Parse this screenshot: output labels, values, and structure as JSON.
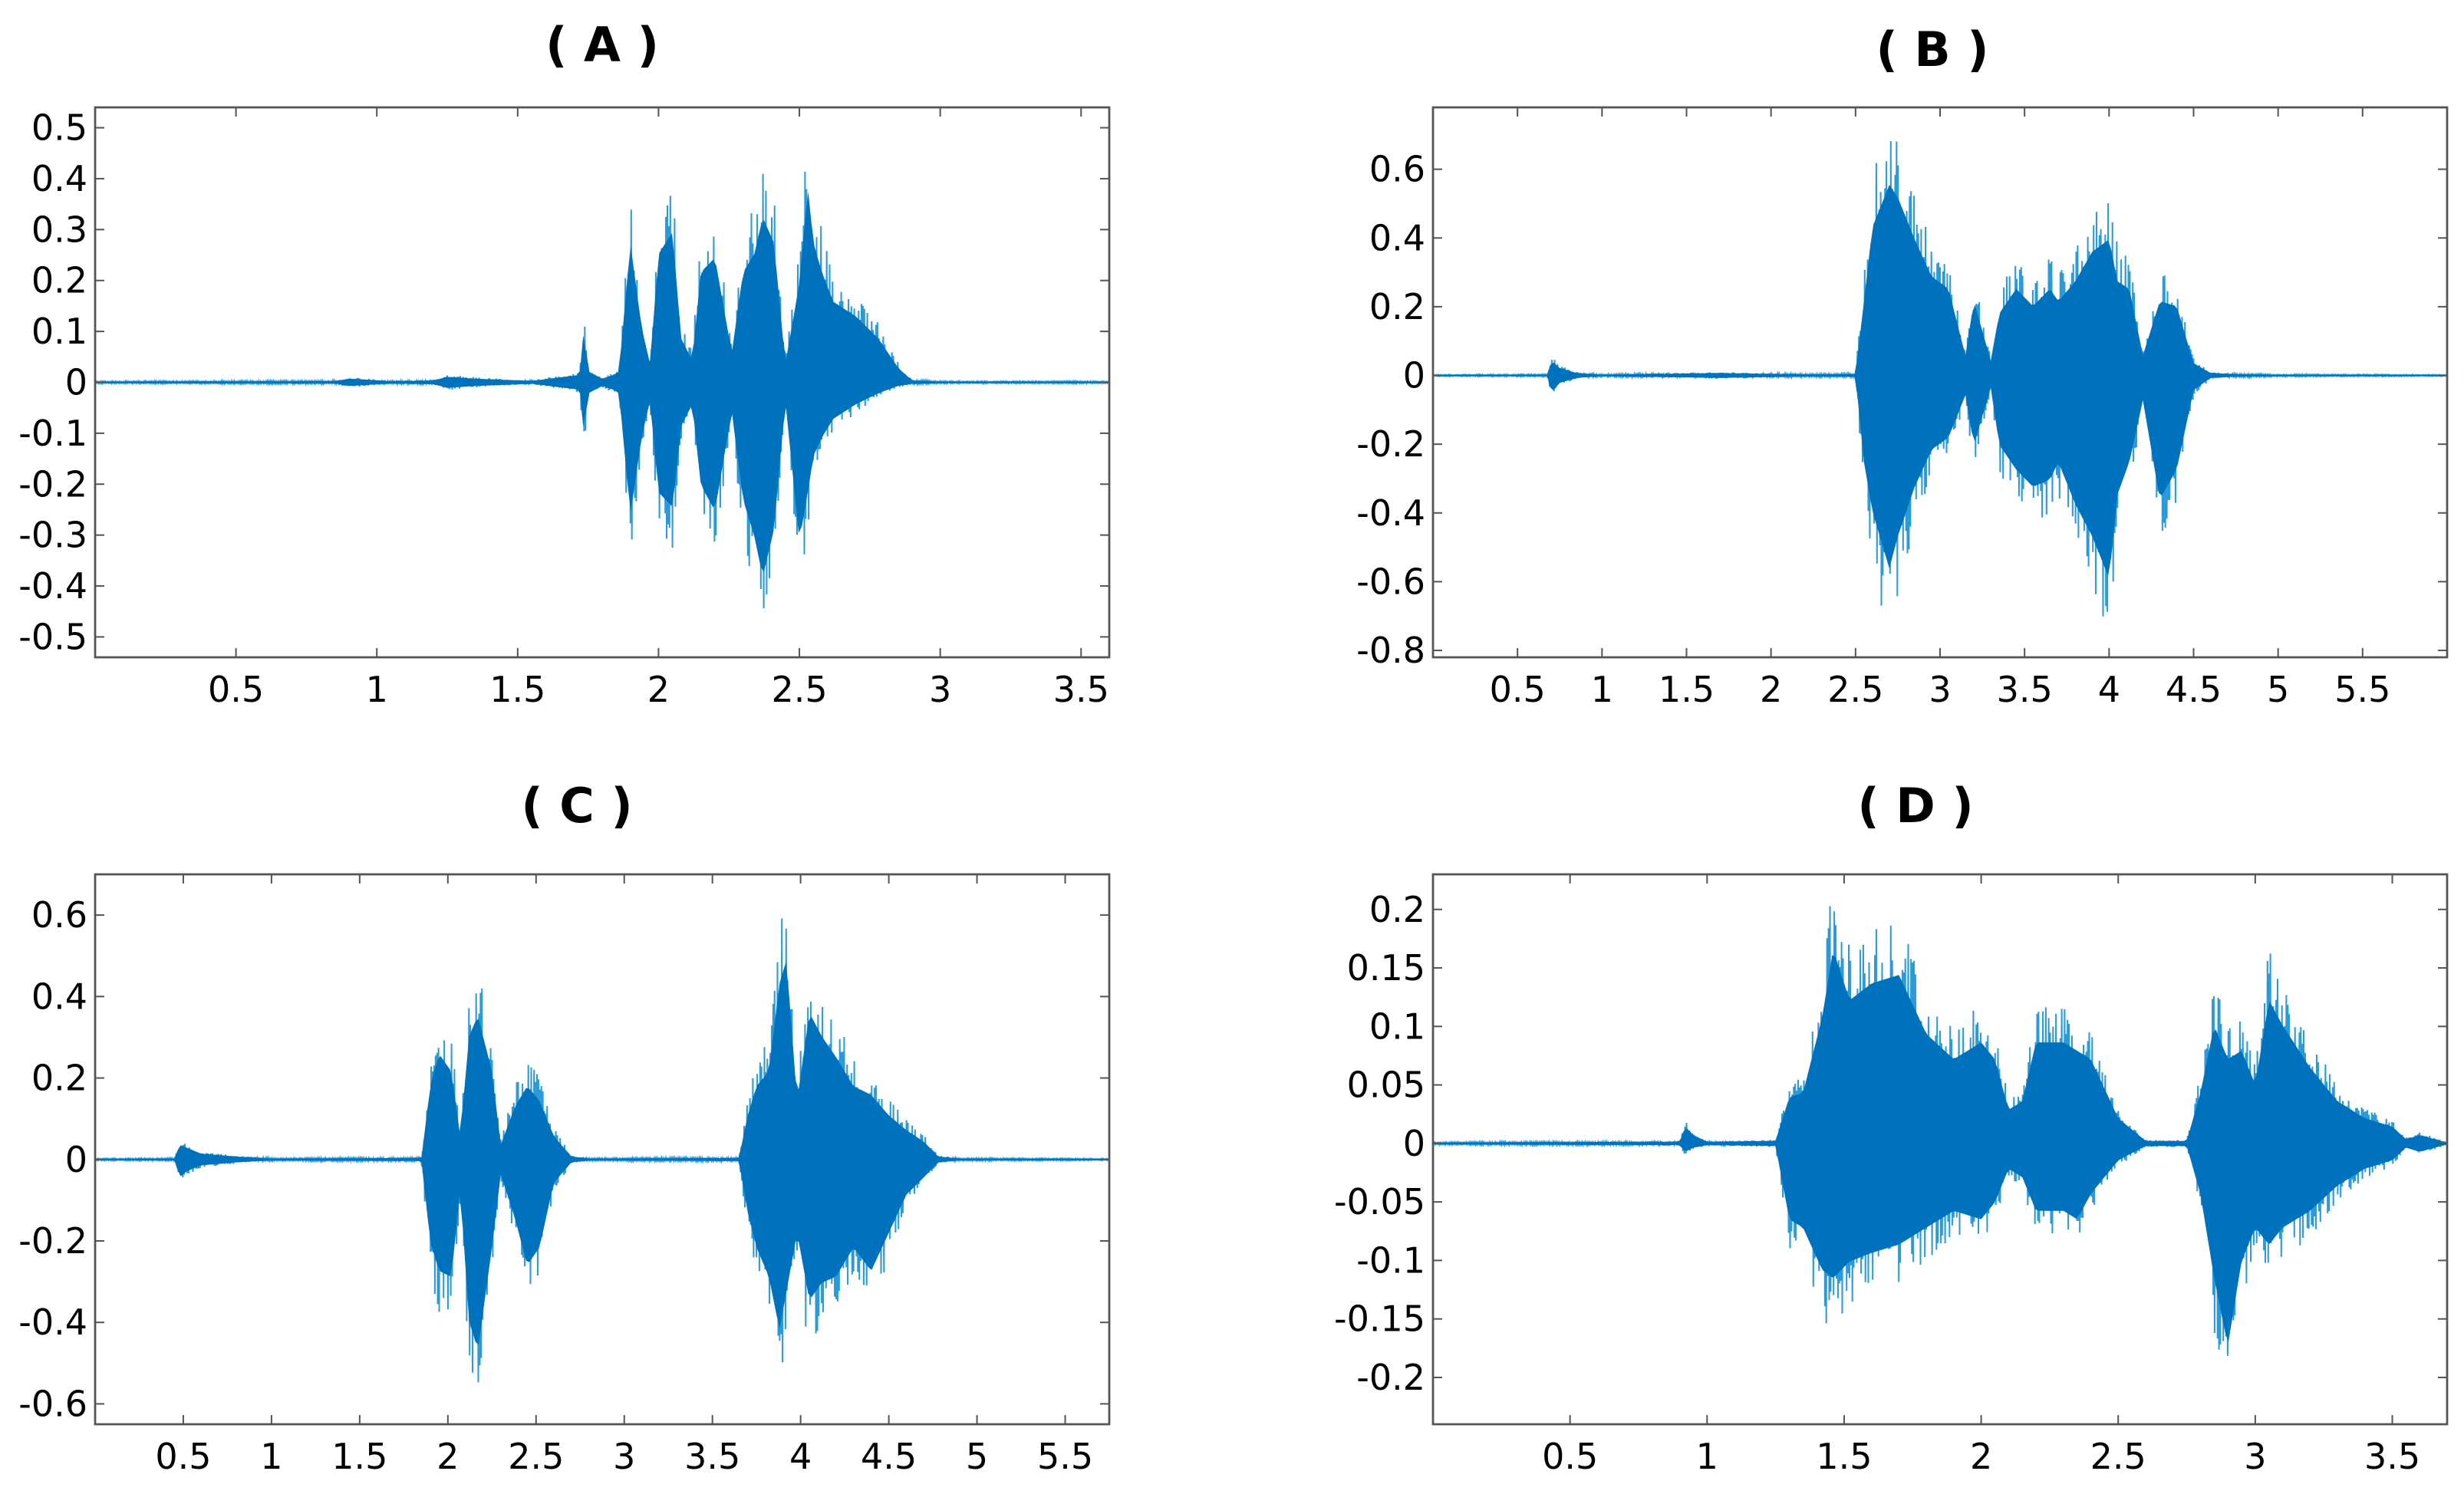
{
  "colors": {
    "waveform": "#0072bd",
    "waveform_light": "#2a9ad8",
    "axes": "#555555",
    "text": "#000000",
    "background": "#ffffff"
  },
  "chart_data": [
    {
      "id": "A",
      "type": "line",
      "title": "( A )",
      "xlim": [
        0,
        3.6
      ],
      "ylim": [
        -0.54,
        0.54
      ],
      "xticks": [
        0.5,
        1,
        1.5,
        2,
        2.5,
        3,
        3.5
      ],
      "xtick_labels": [
        "0.5",
        "1",
        "1.5",
        "2",
        "2.5",
        "3",
        "3.5"
      ],
      "yticks": [
        0.5,
        0.4,
        0.3,
        0.2,
        0.1,
        0,
        -0.1,
        -0.2,
        -0.3,
        -0.4,
        -0.5
      ],
      "ytick_labels": [
        "0.5",
        "0.4",
        "0.3",
        "0.2",
        "0.1",
        "0",
        "-0.1",
        "-0.2",
        "-0.3",
        "-0.4",
        "-0.5"
      ],
      "grid": false,
      "series": [
        {
          "envelope": {
            "x": [
              0,
              0.85,
              0.9,
              0.95,
              1.05,
              1.2,
              1.25,
              1.35,
              1.55,
              1.72,
              1.735,
              1.75,
              1.8,
              1.84,
              1.86,
              1.9,
              1.94,
              1.97,
              2.0,
              2.05,
              2.08,
              2.12,
              2.15,
              2.2,
              2.26,
              2.3,
              2.34,
              2.37,
              2.41,
              2.45,
              2.5,
              2.53,
              2.55,
              2.58,
              2.62,
              2.7,
              2.78,
              2.85,
              2.9,
              3.0,
              3.6
            ],
            "upper": [
              0.002,
              0.003,
              0.01,
              0.008,
              0.003,
              0.005,
              0.015,
              0.01,
              0.004,
              0.02,
              0.15,
              0.03,
              0.01,
              0.02,
              0.03,
              0.38,
              0.15,
              0.05,
              0.35,
              0.41,
              0.12,
              0.06,
              0.3,
              0.34,
              0.08,
              0.3,
              0.35,
              0.45,
              0.38,
              0.05,
              0.27,
              0.53,
              0.38,
              0.3,
              0.22,
              0.18,
              0.12,
              0.04,
              0.005,
              0.002,
              0.002
            ],
            "lower": [
              -0.002,
              -0.003,
              -0.01,
              -0.008,
              -0.003,
              -0.005,
              -0.015,
              -0.01,
              -0.004,
              -0.02,
              -0.14,
              -0.03,
              -0.01,
              -0.02,
              -0.03,
              -0.36,
              -0.15,
              -0.05,
              -0.3,
              -0.34,
              -0.12,
              -0.06,
              -0.28,
              -0.35,
              -0.08,
              -0.32,
              -0.42,
              -0.53,
              -0.4,
              -0.05,
              -0.43,
              -0.3,
              -0.2,
              -0.15,
              -0.1,
              -0.06,
              -0.03,
              -0.01,
              -0.004,
              -0.002,
              -0.002
            ]
          }
        }
      ]
    },
    {
      "id": "B",
      "type": "line",
      "title": "( B )",
      "xlim": [
        0,
        6
      ],
      "ylim": [
        -0.82,
        0.78
      ],
      "xticks": [
        0.5,
        1,
        1.5,
        2,
        2.5,
        3,
        3.5,
        4,
        4.5,
        5,
        5.5
      ],
      "xtick_labels": [
        "0.5",
        "1",
        "1.5",
        "2",
        "2.5",
        "3",
        "3.5",
        "4",
        "4.5",
        "5",
        "5.5"
      ],
      "yticks": [
        0.6,
        0.4,
        0.2,
        0,
        -0.2,
        -0.4,
        -0.6,
        -0.8
      ],
      "ytick_labels": [
        "0.6",
        "0.4",
        "0.2",
        "0",
        "-0.2",
        "-0.4",
        "-0.6",
        "-0.8"
      ],
      "grid": false,
      "series": [
        {
          "envelope": {
            "x": [
              0,
              0.68,
              0.7,
              0.75,
              0.85,
              1.0,
              1.5,
              1.7,
              2.2,
              2.5,
              2.55,
              2.6,
              2.7,
              2.75,
              2.85,
              2.95,
              3.05,
              3.15,
              3.2,
              3.3,
              3.35,
              3.45,
              3.55,
              3.65,
              3.7,
              3.8,
              3.9,
              4.0,
              4.05,
              4.12,
              4.2,
              4.3,
              4.4,
              4.5,
              4.6,
              4.75,
              5.0,
              6.0
            ],
            "upper": [
              0.002,
              0.003,
              0.06,
              0.03,
              0.01,
              0.003,
              0.008,
              0.01,
              0.004,
              0.005,
              0.3,
              0.6,
              0.77,
              0.72,
              0.55,
              0.4,
              0.35,
              0.08,
              0.3,
              0.06,
              0.25,
              0.35,
              0.28,
              0.35,
              0.3,
              0.38,
              0.5,
              0.55,
              0.38,
              0.35,
              0.08,
              0.3,
              0.28,
              0.05,
              0.01,
              0.005,
              0.003,
              0.002
            ],
            "lower": [
              -0.002,
              -0.003,
              -0.07,
              -0.03,
              -0.01,
              -0.003,
              -0.008,
              -0.01,
              -0.004,
              -0.005,
              -0.35,
              -0.55,
              -0.78,
              -0.65,
              -0.45,
              -0.3,
              -0.25,
              -0.08,
              -0.28,
              -0.05,
              -0.28,
              -0.38,
              -0.45,
              -0.42,
              -0.35,
              -0.52,
              -0.65,
              -0.82,
              -0.48,
              -0.35,
              -0.1,
              -0.5,
              -0.38,
              -0.06,
              -0.01,
              -0.005,
              -0.003,
              -0.002
            ]
          }
        }
      ]
    },
    {
      "id": "C",
      "type": "line",
      "title": "( C )",
      "xlim": [
        0,
        5.75
      ],
      "ylim": [
        -0.65,
        0.7
      ],
      "xticks": [
        0.5,
        1,
        1.5,
        2,
        2.5,
        3,
        3.5,
        4,
        4.5,
        5,
        5.5
      ],
      "xtick_labels": [
        "0.5",
        "1",
        "1.5",
        "2",
        "2.5",
        "3",
        "3.5",
        "4",
        "4.5",
        "5",
        "5.5"
      ],
      "yticks": [
        0.6,
        0.4,
        0.2,
        0,
        -0.2,
        -0.4,
        -0.6
      ],
      "ytick_labels": [
        "0.6",
        "0.4",
        "0.2",
        "0",
        "-0.2",
        "-0.4",
        "-0.6"
      ],
      "grid": false,
      "series": [
        {
          "envelope": {
            "x": [
              0,
              0.45,
              0.48,
              0.52,
              0.6,
              0.8,
              1.0,
              1.85,
              1.9,
              1.95,
              2.02,
              2.07,
              2.12,
              2.17,
              2.25,
              2.3,
              2.38,
              2.45,
              2.52,
              2.6,
              2.7,
              2.8,
              3.65,
              3.7,
              3.75,
              3.82,
              3.88,
              3.92,
              3.98,
              4.05,
              4.12,
              4.2,
              4.3,
              4.4,
              4.5,
              4.6,
              4.7,
              4.78,
              4.9,
              5.75
            ],
            "upper": [
              0.002,
              0.003,
              0.05,
              0.04,
              0.02,
              0.01,
              0.003,
              0.005,
              0.25,
              0.36,
              0.3,
              0.08,
              0.42,
              0.49,
              0.3,
              0.05,
              0.18,
              0.25,
              0.2,
              0.08,
              0.01,
              0.003,
              0.005,
              0.15,
              0.25,
              0.3,
              0.6,
              0.68,
              0.2,
              0.5,
              0.42,
              0.35,
              0.25,
              0.22,
              0.15,
              0.1,
              0.06,
              0.01,
              0.003,
              0.002
            ],
            "lower": [
              -0.002,
              -0.003,
              -0.06,
              -0.04,
              -0.02,
              -0.01,
              -0.003,
              -0.005,
              -0.28,
              -0.38,
              -0.4,
              -0.1,
              -0.55,
              -0.65,
              -0.3,
              -0.05,
              -0.2,
              -0.36,
              -0.3,
              -0.08,
              -0.01,
              -0.003,
              -0.005,
              -0.18,
              -0.3,
              -0.4,
              -0.58,
              -0.45,
              -0.25,
              -0.48,
              -0.42,
              -0.4,
              -0.3,
              -0.38,
              -0.25,
              -0.12,
              -0.06,
              -0.01,
              -0.003,
              -0.002
            ]
          }
        }
      ]
    },
    {
      "id": "D",
      "type": "line",
      "title": "( D )",
      "xlim": [
        0,
        3.7
      ],
      "ylim": [
        -0.24,
        0.23
      ],
      "xticks": [
        0.5,
        1,
        1.5,
        2,
        2.5,
        3,
        3.5
      ],
      "xtick_labels": [
        "0.5",
        "1",
        "1.5",
        "2",
        "2.5",
        "3",
        "3.5"
      ],
      "yticks": [
        0.2,
        0.15,
        0.1,
        0.05,
        0,
        -0.05,
        -0.1,
        -0.15,
        -0.2
      ],
      "ytick_labels": [
        "0.2",
        "0.15",
        "0.1",
        "0.05",
        "0",
        "-0.05",
        "-0.1",
        "-0.15",
        "-0.2"
      ],
      "grid": false,
      "series": [
        {
          "envelope": {
            "x": [
              0,
              0.9,
              0.92,
              0.95,
              1.0,
              1.25,
              1.3,
              1.35,
              1.42,
              1.46,
              1.52,
              1.6,
              1.7,
              1.8,
              1.9,
              2.0,
              2.05,
              2.1,
              2.15,
              2.2,
              2.3,
              2.35,
              2.4,
              2.5,
              2.6,
              2.75,
              2.8,
              2.85,
              2.9,
              2.95,
              3.0,
              3.05,
              3.1,
              3.2,
              3.3,
              3.4,
              3.5,
              3.55,
              3.6,
              3.7
            ],
            "upper": [
              0.001,
              0.002,
              0.02,
              0.01,
              0.002,
              0.003,
              0.055,
              0.06,
              0.15,
              0.23,
              0.17,
              0.19,
              0.2,
              0.13,
              0.1,
              0.12,
              0.1,
              0.04,
              0.05,
              0.12,
              0.12,
              0.11,
              0.1,
              0.03,
              0.003,
              0.003,
              0.06,
              0.14,
              0.1,
              0.11,
              0.07,
              0.17,
              0.14,
              0.09,
              0.05,
              0.03,
              0.02,
              0.005,
              0.01,
              0.001
            ],
            "lower": [
              -0.001,
              -0.002,
              -0.01,
              -0.005,
              -0.002,
              -0.003,
              -0.09,
              -0.1,
              -0.15,
              -0.16,
              -0.14,
              -0.13,
              -0.12,
              -0.1,
              -0.08,
              -0.09,
              -0.07,
              -0.03,
              -0.04,
              -0.08,
              -0.08,
              -0.09,
              -0.06,
              -0.02,
              -0.003,
              -0.003,
              -0.06,
              -0.16,
              -0.24,
              -0.14,
              -0.1,
              -0.12,
              -0.1,
              -0.08,
              -0.05,
              -0.03,
              -0.02,
              -0.005,
              -0.01,
              -0.001
            ]
          }
        }
      ]
    }
  ]
}
